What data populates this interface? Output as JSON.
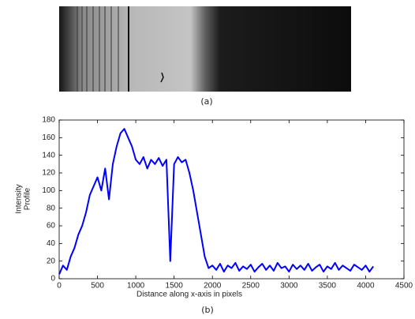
{
  "figure": {
    "caption_a": "(a)",
    "caption_b": "(b)"
  },
  "chart_data": {
    "type": "line",
    "xlabel": "Distance along x-axis in pixels",
    "ylabel_lines": [
      "Intensity",
      "Profile"
    ],
    "x": [
      0,
      50,
      100,
      150,
      200,
      250,
      300,
      350,
      400,
      450,
      500,
      550,
      600,
      650,
      700,
      750,
      800,
      850,
      900,
      950,
      1000,
      1050,
      1100,
      1150,
      1200,
      1250,
      1300,
      1350,
      1400,
      1450,
      1500,
      1550,
      1600,
      1650,
      1700,
      1750,
      1800,
      1850,
      1900,
      1950,
      2000,
      2050,
      2100,
      2150,
      2200,
      2250,
      2300,
      2350,
      2400,
      2450,
      2500,
      2550,
      2600,
      2650,
      2700,
      2750,
      2800,
      2850,
      2900,
      2950,
      3000,
      3050,
      3100,
      3150,
      3200,
      3250,
      3300,
      3350,
      3400,
      3450,
      3500,
      3550,
      3600,
      3650,
      3700,
      3750,
      3800,
      3850,
      3900,
      3950,
      4000,
      4050,
      4100
    ],
    "values": [
      5,
      15,
      10,
      25,
      35,
      50,
      60,
      75,
      95,
      105,
      115,
      100,
      125,
      90,
      130,
      150,
      165,
      170,
      160,
      150,
      135,
      130,
      138,
      125,
      135,
      130,
      137,
      128,
      135,
      20,
      130,
      138,
      132,
      135,
      120,
      100,
      75,
      50,
      25,
      12,
      15,
      10,
      17,
      8,
      15,
      12,
      18,
      9,
      14,
      11,
      16,
      8,
      13,
      17,
      10,
      15,
      9,
      18,
      12,
      14,
      8,
      16,
      11,
      15,
      10,
      17,
      9,
      13,
      16,
      8,
      14,
      11,
      18,
      10,
      15,
      12,
      9,
      16,
      13,
      10,
      15,
      8,
      14
    ],
    "color": "#0000ff",
    "xlim": [
      0,
      4500
    ],
    "xticks": [
      0,
      500,
      1000,
      1500,
      2000,
      2500,
      3000,
      3500,
      4000,
      4500
    ],
    "ylim": [
      0,
      180
    ],
    "yticks": [
      0,
      20,
      40,
      60,
      80,
      100,
      120,
      140,
      160,
      180
    ]
  }
}
